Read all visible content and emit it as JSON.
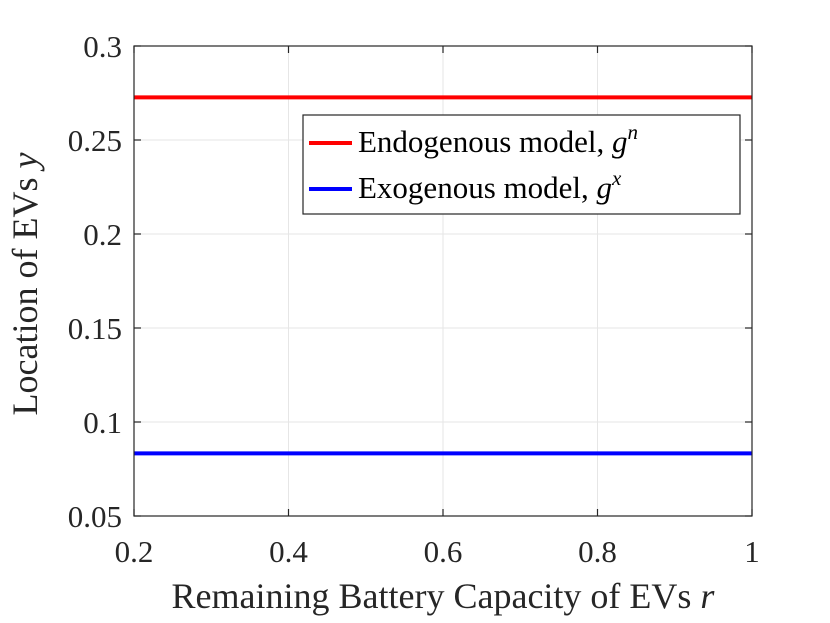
{
  "chart_data": {
    "type": "line",
    "title": "",
    "xlabel": {
      "text": "Remaining Battery Capacity of EVs",
      "symbol": "r"
    },
    "ylabel": {
      "text": "Location of EVs",
      "symbol": "y"
    },
    "xlim": [
      0.2,
      1
    ],
    "ylim": [
      0.05,
      0.3
    ],
    "xticks": [
      0.2,
      0.4,
      0.6,
      0.8,
      1
    ],
    "xtick_labels": [
      "0.2",
      "0.4",
      "0.6",
      "0.8",
      "1"
    ],
    "yticks": [
      0.05,
      0.1,
      0.15,
      0.2,
      0.25,
      0.3
    ],
    "ytick_labels": [
      "0.05",
      "0.1",
      "0.15",
      "0.2",
      "0.25",
      "0.3"
    ],
    "grid": true,
    "legend_position": "top-right",
    "series": [
      {
        "name": "Endogenous model, g^n",
        "label_text": "Endogenous model, ",
        "symbol": "g",
        "superscript": "n",
        "color": "#ff0000",
        "x": [
          0.2,
          1
        ],
        "y": [
          0.2727,
          0.2727
        ]
      },
      {
        "name": "Exogenous model, g^x",
        "label_text": "Exogenous model, ",
        "symbol": "g",
        "superscript": "x",
        "color": "#0000ff",
        "x": [
          0.2,
          1
        ],
        "y": [
          0.0833,
          0.0833
        ]
      }
    ]
  }
}
